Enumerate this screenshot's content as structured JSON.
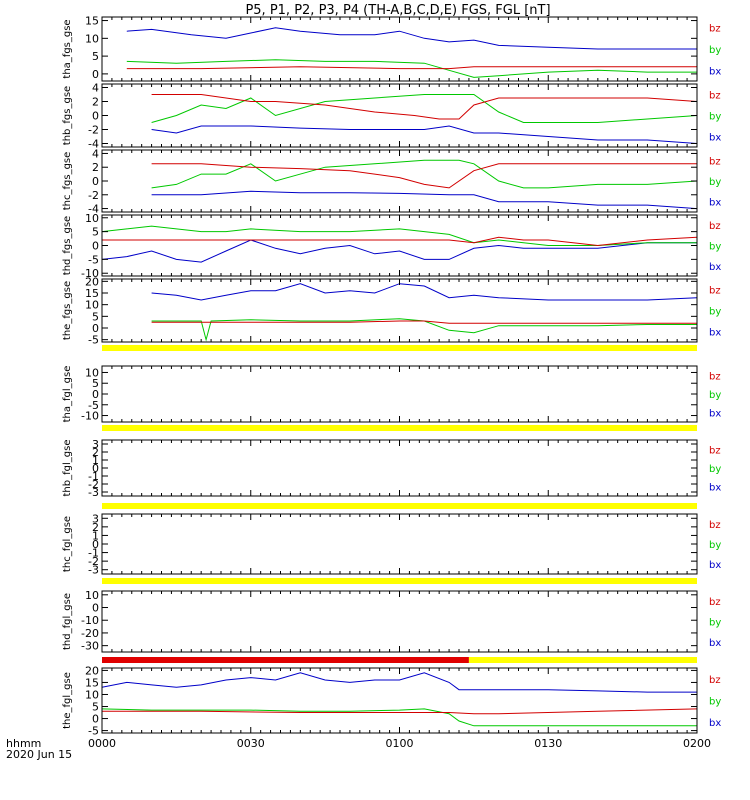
{
  "title": "P5, P1, P2, P3, P4 (TH-A,B,C,D,E) FGS, FGL [nT]",
  "x_axis": {
    "ticks": [
      "0000",
      "0030",
      "0100",
      "0130",
      "0200"
    ],
    "label_line1": "hhmm",
    "label_line2": "2020 Jun 15"
  },
  "colors": {
    "bx": "#0000c8",
    "by": "#00c800",
    "bz": "#d20000",
    "bar_yellow": "#ffff00",
    "bar_red": "#e00000"
  },
  "chart_data": [
    {
      "type": "line",
      "panel": "tha_fgs_gse",
      "ylabel": "tha_fgs_gse",
      "ylim": [
        -2,
        16
      ],
      "yticks": [
        "15",
        "10",
        "5",
        "0"
      ],
      "legend": [
        "bz",
        "by",
        "bx"
      ],
      "x_range_minutes": [
        0,
        120
      ],
      "series": [
        {
          "name": "bx",
          "x": [
            5,
            10,
            18,
            25,
            30,
            35,
            40,
            48,
            55,
            60,
            65,
            70,
            75,
            80,
            90,
            100,
            110,
            120
          ],
          "y": [
            12,
            12.5,
            11,
            10,
            11.5,
            13,
            12,
            11,
            11,
            12,
            10,
            9,
            9.5,
            8,
            7.5,
            7,
            7,
            7
          ]
        },
        {
          "name": "by",
          "x": [
            5,
            15,
            25,
            35,
            45,
            55,
            65,
            70,
            75,
            80,
            90,
            100,
            110,
            120
          ],
          "y": [
            3.5,
            3,
            3.5,
            4,
            3.5,
            3.5,
            3,
            1,
            -1,
            -0.5,
            0.5,
            1,
            0.5,
            0.5
          ]
        },
        {
          "name": "bz",
          "x": [
            5,
            20,
            40,
            60,
            70,
            75,
            85,
            100,
            120
          ],
          "y": [
            1.5,
            1.5,
            2,
            1.5,
            1.5,
            2,
            2,
            2,
            2
          ]
        }
      ]
    },
    {
      "type": "line",
      "panel": "thb_fgs_gse",
      "ylabel": "thb_fgs_gse",
      "ylim": [
        -4.5,
        4.5
      ],
      "yticks": [
        "4",
        "2",
        "0",
        "-2",
        "-4"
      ],
      "legend": [
        "bz",
        "by",
        "bx"
      ],
      "x_range_minutes": [
        0,
        120
      ],
      "series": [
        {
          "name": "bx",
          "x": [
            10,
            15,
            20,
            30,
            40,
            50,
            60,
            65,
            70,
            75,
            80,
            90,
            100,
            110,
            120
          ],
          "y": [
            -2,
            -2.5,
            -1.5,
            -1.5,
            -1.8,
            -2,
            -2,
            -2,
            -1.5,
            -2.5,
            -2.5,
            -3,
            -3.5,
            -3.5,
            -4
          ]
        },
        {
          "name": "by",
          "x": [
            10,
            15,
            20,
            25,
            30,
            35,
            45,
            55,
            65,
            72,
            75,
            80,
            85,
            90,
            100,
            110,
            120
          ],
          "y": [
            -1,
            0,
            1.5,
            1,
            2.5,
            0,
            2,
            2.5,
            3,
            3,
            3,
            0.5,
            -1,
            -1,
            -1,
            -0.5,
            0
          ]
        },
        {
          "name": "bz",
          "x": [
            10,
            20,
            30,
            35,
            45,
            55,
            63,
            68,
            72,
            75,
            80,
            90,
            100,
            110,
            120
          ],
          "y": [
            3,
            3,
            2,
            2,
            1.5,
            0.5,
            0,
            -0.5,
            -0.5,
            1.5,
            2.5,
            2.5,
            2.5,
            2.5,
            2
          ]
        }
      ]
    },
    {
      "type": "line",
      "panel": "thc_fgs_gse",
      "ylabel": "thc_fgs_gse",
      "ylim": [
        -4.5,
        4.5
      ],
      "yticks": [
        "4",
        "2",
        "0",
        "-2",
        "-4"
      ],
      "legend": [
        "bz",
        "by",
        "bx"
      ],
      "x_range_minutes": [
        0,
        120
      ],
      "series": [
        {
          "name": "bx",
          "x": [
            10,
            20,
            30,
            40,
            50,
            60,
            70,
            75,
            80,
            90,
            100,
            110,
            120
          ],
          "y": [
            -2,
            -2,
            -1.5,
            -1.7,
            -1.7,
            -1.8,
            -2,
            -2,
            -3,
            -3,
            -3.5,
            -3.5,
            -4
          ]
        },
        {
          "name": "by",
          "x": [
            10,
            15,
            20,
            25,
            30,
            35,
            45,
            55,
            65,
            72,
            75,
            80,
            85,
            90,
            100,
            110,
            120
          ],
          "y": [
            -1,
            -0.5,
            1,
            1,
            2.5,
            0,
            2,
            2.5,
            3,
            3,
            2.5,
            0,
            -1,
            -1,
            -0.5,
            -0.5,
            0
          ]
        },
        {
          "name": "bz",
          "x": [
            10,
            20,
            30,
            40,
            50,
            60,
            65,
            70,
            75,
            80,
            90,
            100,
            110,
            120
          ],
          "y": [
            2.5,
            2.5,
            2,
            1.8,
            1.5,
            0.5,
            -0.5,
            -1,
            1.5,
            2.5,
            2.5,
            2.5,
            2.5,
            2.5
          ]
        }
      ]
    },
    {
      "type": "line",
      "panel": "thd_fgs_gse",
      "ylabel": "thd_fgs_gse",
      "ylim": [
        -11,
        11
      ],
      "yticks": [
        "10",
        "5",
        "0",
        "-5",
        "-10"
      ],
      "legend": [
        "bz",
        "by",
        "bx"
      ],
      "x_range_minutes": [
        0,
        120
      ],
      "series": [
        {
          "name": "bx",
          "x": [
            0,
            5,
            10,
            15,
            20,
            25,
            30,
            35,
            40,
            45,
            50,
            55,
            60,
            65,
            70,
            75,
            80,
            85,
            90,
            100,
            110,
            120
          ],
          "y": [
            -5,
            -4,
            -2,
            -5,
            -6,
            -2,
            2,
            -1,
            -3,
            -1,
            0,
            -3,
            -2,
            -5,
            -5,
            -1,
            0,
            -1,
            -1,
            -1,
            1,
            1
          ]
        },
        {
          "name": "by",
          "x": [
            0,
            5,
            10,
            20,
            25,
            30,
            40,
            50,
            60,
            65,
            70,
            75,
            80,
            85,
            90,
            100,
            110,
            120
          ],
          "y": [
            5,
            6,
            7,
            5,
            5,
            6,
            5,
            5,
            6,
            5,
            4,
            1,
            2,
            1,
            0,
            0,
            1,
            1
          ]
        },
        {
          "name": "bz",
          "x": [
            0,
            20,
            40,
            60,
            70,
            75,
            80,
            85,
            90,
            100,
            110,
            120
          ],
          "y": [
            2,
            2,
            2,
            2,
            2,
            1,
            3,
            2,
            2,
            0,
            2,
            3
          ]
        }
      ]
    },
    {
      "type": "line",
      "panel": "the_fgs_gse",
      "ylabel": "the_fgs_gse",
      "ylim": [
        -6,
        21
      ],
      "yticks": [
        "20",
        "15",
        "10",
        "5",
        "0",
        "-5"
      ],
      "legend": [
        "bz",
        "by",
        "bx"
      ],
      "x_range_minutes": [
        0,
        120
      ],
      "series": [
        {
          "name": "bx",
          "x": [
            10,
            15,
            20,
            25,
            30,
            35,
            40,
            45,
            50,
            55,
            60,
            65,
            70,
            75,
            80,
            90,
            100,
            110,
            120
          ],
          "y": [
            15,
            14,
            12,
            14,
            16,
            16,
            19,
            15,
            16,
            15,
            19,
            18,
            13,
            14,
            13,
            12,
            12,
            12,
            13
          ]
        },
        {
          "name": "by",
          "x": [
            10,
            20,
            21,
            22,
            30,
            40,
            50,
            60,
            65,
            70,
            75,
            80,
            90,
            100,
            110,
            120
          ],
          "y": [
            3,
            3,
            -5,
            3,
            3.5,
            3,
            3,
            4,
            3,
            -1,
            -2,
            1,
            1,
            1,
            1.5,
            1.5
          ]
        },
        {
          "name": "bz",
          "x": [
            10,
            30,
            50,
            60,
            65,
            70,
            80,
            100,
            120
          ],
          "y": [
            2.5,
            2.5,
            2.5,
            3,
            3,
            2,
            2,
            2,
            2
          ]
        }
      ]
    },
    {
      "type": "line",
      "panel": "tha_fgl_gse",
      "ylabel": "tha_fgl_gse",
      "ylim": [
        -13,
        13
      ],
      "yticks": [
        "10",
        "5",
        "0",
        "-5",
        "-10"
      ],
      "legend": [
        "bz",
        "by",
        "bx"
      ],
      "series": []
    },
    {
      "type": "line",
      "panel": "thb_fgl_gse",
      "ylabel": "thb_fgl_gse",
      "ylim": [
        -3.5,
        3.5
      ],
      "yticks": [
        "3",
        "2",
        "1",
        "0",
        "-1",
        "-2",
        "-3"
      ],
      "legend": [
        "bz",
        "by",
        "bx"
      ],
      "series": []
    },
    {
      "type": "line",
      "panel": "thc_fgl_gse",
      "ylabel": "thc_fgl_gse",
      "ylim": [
        -3.5,
        3.5
      ],
      "yticks": [
        "3",
        "2",
        "1",
        "0",
        "-1",
        "-2",
        "-3"
      ],
      "legend": [
        "bz",
        "by",
        "bx"
      ],
      "series": []
    },
    {
      "type": "line",
      "panel": "thd_fgl_gse",
      "ylabel": "thd_fgl_gse",
      "ylim": [
        -35,
        13
      ],
      "yticks": [
        "10",
        "0",
        "-10",
        "-20",
        "-30"
      ],
      "legend": [
        "bz",
        "by",
        "bx"
      ],
      "series": []
    },
    {
      "type": "line",
      "panel": "the_fgl_gse",
      "ylabel": "the_fgl_gse",
      "ylim": [
        -6,
        21
      ],
      "yticks": [
        "20",
        "15",
        "10",
        "5",
        "0",
        "-5"
      ],
      "legend": [
        "bz",
        "by",
        "bx"
      ],
      "x_range_minutes": [
        0,
        120
      ],
      "series": [
        {
          "name": "bx",
          "x": [
            0,
            5,
            10,
            15,
            20,
            25,
            30,
            35,
            40,
            45,
            50,
            55,
            60,
            65,
            70,
            72,
            75,
            80,
            90,
            100,
            110,
            120
          ],
          "y": [
            13,
            15,
            14,
            13,
            14,
            16,
            17,
            16,
            19,
            16,
            15,
            16,
            16,
            19,
            15,
            12,
            12,
            12,
            12,
            11.5,
            11,
            11
          ]
        },
        {
          "name": "by",
          "x": [
            0,
            10,
            20,
            30,
            40,
            50,
            60,
            65,
            70,
            72,
            75,
            80,
            100,
            120
          ],
          "y": [
            4,
            3.5,
            3.5,
            3.5,
            3,
            3,
            3.5,
            4,
            2,
            -1,
            -3,
            -3,
            -3,
            -3
          ]
        },
        {
          "name": "bz",
          "x": [
            0,
            20,
            40,
            60,
            70,
            75,
            80,
            100,
            120
          ],
          "y": [
            3,
            3,
            2.5,
            2.5,
            2.5,
            2,
            2,
            3,
            4
          ]
        }
      ]
    }
  ],
  "bars": [
    {
      "segments": [
        {
          "color": "yellow",
          "from": 0,
          "to": 120
        }
      ]
    },
    {
      "segments": [
        {
          "color": "yellow",
          "from": 0,
          "to": 120
        }
      ]
    },
    {
      "segments": [
        {
          "color": "yellow",
          "from": 0,
          "to": 120
        }
      ]
    },
    {
      "segments": [
        {
          "color": "yellow",
          "from": 0,
          "to": 120
        }
      ]
    },
    {
      "segments": [
        {
          "color": "red",
          "from": 0,
          "to": 74
        },
        {
          "color": "yellow",
          "from": 74,
          "to": 120
        }
      ]
    }
  ]
}
